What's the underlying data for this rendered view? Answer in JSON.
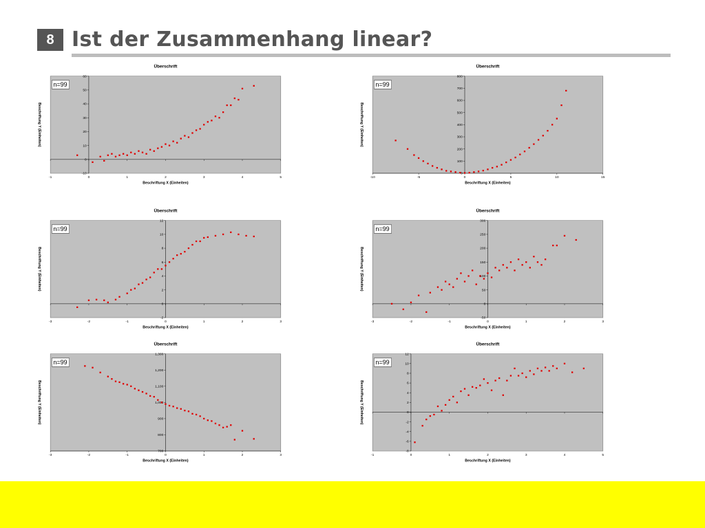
{
  "slide": {
    "number": "8",
    "title": "Ist der Zusammenhang linear?"
  },
  "colors": {
    "point": "#e00000",
    "plot_bg": "#c0c0c0",
    "footer": "#ffff00",
    "title": "#555555"
  },
  "chart_data": [
    {
      "type": "scatter",
      "title": "Überschrift",
      "xlabel": "Beschriftung X (Einheiten)",
      "ylabel": "Beschriftung Y (Einheiten)",
      "n_label": "n=99",
      "xlim": [
        -1,
        5
      ],
      "ylim": [
        -10,
        60
      ],
      "xticks": [
        -1,
        0,
        1,
        2,
        3,
        4,
        5
      ],
      "yticks": [
        -10,
        0,
        10,
        20,
        30,
        40,
        50,
        60
      ],
      "grid": false,
      "points": [
        [
          -0.3,
          3
        ],
        [
          0.1,
          -2
        ],
        [
          0.3,
          2
        ],
        [
          0.4,
          -1
        ],
        [
          0.5,
          3
        ],
        [
          0.6,
          4
        ],
        [
          0.7,
          2
        ],
        [
          0.8,
          3
        ],
        [
          0.9,
          4
        ],
        [
          1.0,
          3
        ],
        [
          1.1,
          5
        ],
        [
          1.2,
          4
        ],
        [
          1.3,
          6
        ],
        [
          1.4,
          5
        ],
        [
          1.5,
          4
        ],
        [
          1.6,
          7
        ],
        [
          1.7,
          6
        ],
        [
          1.8,
          8
        ],
        [
          1.9,
          9
        ],
        [
          2.0,
          11
        ],
        [
          2.1,
          10
        ],
        [
          2.2,
          13
        ],
        [
          2.3,
          12
        ],
        [
          2.4,
          15
        ],
        [
          2.5,
          17
        ],
        [
          2.6,
          16
        ],
        [
          2.7,
          19
        ],
        [
          2.8,
          21
        ],
        [
          2.9,
          22
        ],
        [
          3.0,
          25
        ],
        [
          3.1,
          27
        ],
        [
          3.2,
          28
        ],
        [
          3.3,
          31
        ],
        [
          3.4,
          30
        ],
        [
          3.5,
          34
        ],
        [
          3.6,
          39
        ],
        [
          3.7,
          39
        ],
        [
          3.8,
          44
        ],
        [
          3.9,
          43
        ],
        [
          4.0,
          51
        ],
        [
          4.3,
          53
        ]
      ]
    },
    {
      "type": "scatter",
      "title": "Überschrift",
      "xlabel": "Beschriftung X (Einheiten)",
      "ylabel": "Beschriftung Y (Einheiten)",
      "n_label": "n=99",
      "xlim": [
        -10,
        15
      ],
      "ylim": [
        0,
        800
      ],
      "xticks": [
        -10,
        -5,
        0,
        5,
        10,
        15
      ],
      "yticks": [
        0,
        100,
        200,
        300,
        400,
        500,
        600,
        700,
        800
      ],
      "grid": false,
      "points": [
        [
          -7.5,
          270
        ],
        [
          -6.2,
          200
        ],
        [
          -5.5,
          150
        ],
        [
          -5,
          125
        ],
        [
          -4.5,
          100
        ],
        [
          -4,
          80
        ],
        [
          -3.5,
          60
        ],
        [
          -3,
          45
        ],
        [
          -2.5,
          32
        ],
        [
          -2,
          20
        ],
        [
          -1.5,
          15
        ],
        [
          -1,
          10
        ],
        [
          -0.5,
          5
        ],
        [
          0,
          3
        ],
        [
          0.5,
          5
        ],
        [
          1,
          10
        ],
        [
          1.5,
          15
        ],
        [
          2,
          22
        ],
        [
          2.5,
          32
        ],
        [
          3,
          45
        ],
        [
          3.5,
          55
        ],
        [
          4,
          70
        ],
        [
          4.5,
          90
        ],
        [
          5,
          110
        ],
        [
          5.5,
          130
        ],
        [
          6,
          155
        ],
        [
          6.5,
          180
        ],
        [
          7,
          210
        ],
        [
          7.5,
          240
        ],
        [
          8,
          275
        ],
        [
          8.5,
          310
        ],
        [
          9,
          350
        ],
        [
          9.5,
          400
        ],
        [
          10,
          450
        ],
        [
          10.5,
          560
        ],
        [
          11,
          680
        ]
      ]
    },
    {
      "type": "scatter",
      "title": "Überschrift",
      "xlabel": "Beschriftung X (Einheiten)",
      "ylabel": "Beschriftung Y (Einheiten)",
      "n_label": "n=99",
      "xlim": [
        -3,
        3
      ],
      "ylim": [
        -2,
        12
      ],
      "xticks": [
        -3,
        -2,
        -1,
        0,
        1,
        2,
        3
      ],
      "yticks": [
        -2,
        0,
        2,
        4,
        6,
        8,
        10,
        12
      ],
      "grid": false,
      "points": [
        [
          -2.3,
          -0.5
        ],
        [
          -2.0,
          0.5
        ],
        [
          -1.8,
          0.6
        ],
        [
          -1.6,
          0.5
        ],
        [
          -1.5,
          0.2
        ],
        [
          -1.3,
          0.6
        ],
        [
          -1.2,
          1
        ],
        [
          -1.0,
          1.5
        ],
        [
          -0.9,
          2
        ],
        [
          -0.8,
          2.2
        ],
        [
          -0.7,
          2.8
        ],
        [
          -0.6,
          3
        ],
        [
          -0.5,
          3.5
        ],
        [
          -0.4,
          3.8
        ],
        [
          -0.3,
          4.5
        ],
        [
          -0.2,
          5
        ],
        [
          -0.1,
          5
        ],
        [
          0.0,
          5.5
        ],
        [
          0.1,
          6
        ],
        [
          0.2,
          6.5
        ],
        [
          0.3,
          7
        ],
        [
          0.4,
          7.2
        ],
        [
          0.5,
          7.5
        ],
        [
          0.6,
          8
        ],
        [
          0.7,
          8.5
        ],
        [
          0.8,
          9
        ],
        [
          0.9,
          9
        ],
        [
          1.0,
          9.5
        ],
        [
          1.1,
          9.6
        ],
        [
          1.3,
          9.8
        ],
        [
          1.5,
          10
        ],
        [
          1.7,
          10.3
        ],
        [
          1.9,
          10
        ],
        [
          2.1,
          9.8
        ],
        [
          2.3,
          9.7
        ]
      ]
    },
    {
      "type": "scatter",
      "title": "Überschrift",
      "xlabel": "Beschriftung X (Einheiten)",
      "ylabel": "Beschriftung Y (Einheiten)",
      "n_label": "n=99",
      "xlim": [
        -3,
        3
      ],
      "ylim": [
        -50,
        300
      ],
      "xticks": [
        -3,
        -2,
        -1,
        0,
        1,
        2,
        3
      ],
      "yticks": [
        -50,
        0,
        50,
        100,
        150,
        200,
        250,
        300
      ],
      "grid": false,
      "points": [
        [
          -2.5,
          0
        ],
        [
          -2.2,
          -20
        ],
        [
          -2.0,
          5
        ],
        [
          -1.8,
          30
        ],
        [
          -1.6,
          -30
        ],
        [
          -1.5,
          40
        ],
        [
          -1.3,
          60
        ],
        [
          -1.2,
          50
        ],
        [
          -1.1,
          80
        ],
        [
          -1.0,
          70
        ],
        [
          -0.9,
          60
        ],
        [
          -0.8,
          90
        ],
        [
          -0.7,
          110
        ],
        [
          -0.6,
          80
        ],
        [
          -0.5,
          100
        ],
        [
          -0.4,
          120
        ],
        [
          -0.3,
          70
        ],
        [
          -0.2,
          100
        ],
        [
          -0.1,
          90
        ],
        [
          0.0,
          110
        ],
        [
          0.1,
          95
        ],
        [
          0.2,
          130
        ],
        [
          0.3,
          120
        ],
        [
          0.4,
          140
        ],
        [
          0.5,
          130
        ],
        [
          0.6,
          150
        ],
        [
          0.7,
          120
        ],
        [
          0.8,
          160
        ],
        [
          0.9,
          140
        ],
        [
          1.0,
          150
        ],
        [
          1.1,
          130
        ],
        [
          1.2,
          170
        ],
        [
          1.3,
          150
        ],
        [
          1.4,
          140
        ],
        [
          1.5,
          160
        ],
        [
          1.7,
          210
        ],
        [
          1.8,
          210
        ],
        [
          2.0,
          245
        ],
        [
          2.3,
          230
        ]
      ]
    },
    {
      "type": "scatter",
      "title": "Überschrift",
      "xlabel": "Beschriftung X (Einheiten)",
      "ylabel": "Beschriftung Y (Einheiten)",
      "n_label": "n=99",
      "xlim": [
        -3,
        3
      ],
      "ylim": [
        700,
        1300
      ],
      "xticks": [
        -3,
        -2,
        -1,
        0,
        1,
        2,
        3
      ],
      "yticks": [
        700,
        800,
        900,
        1000,
        1100,
        1200,
        1300
      ],
      "ytick_labels": [
        "700",
        "800",
        "900",
        "1,000",
        "1,100",
        "1,200",
        "1,300"
      ],
      "grid": false,
      "points": [
        [
          -2.1,
          1225
        ],
        [
          -1.9,
          1215
        ],
        [
          -1.7,
          1185
        ],
        [
          -1.5,
          1160
        ],
        [
          -1.4,
          1145
        ],
        [
          -1.3,
          1130
        ],
        [
          -1.2,
          1125
        ],
        [
          -1.1,
          1115
        ],
        [
          -1.0,
          1110
        ],
        [
          -0.9,
          1100
        ],
        [
          -0.8,
          1085
        ],
        [
          -0.7,
          1075
        ],
        [
          -0.6,
          1065
        ],
        [
          -0.5,
          1055
        ],
        [
          -0.4,
          1040
        ],
        [
          -0.3,
          1035
        ],
        [
          -0.2,
          1015
        ],
        [
          -0.1,
          1000
        ],
        [
          0.0,
          990
        ],
        [
          0.1,
          980
        ],
        [
          0.2,
          975
        ],
        [
          0.3,
          965
        ],
        [
          0.4,
          960
        ],
        [
          0.5,
          950
        ],
        [
          0.6,
          945
        ],
        [
          0.7,
          930
        ],
        [
          0.8,
          925
        ],
        [
          0.9,
          915
        ],
        [
          1.0,
          900
        ],
        [
          1.1,
          890
        ],
        [
          1.2,
          885
        ],
        [
          1.3,
          870
        ],
        [
          1.4,
          860
        ],
        [
          1.5,
          845
        ],
        [
          1.6,
          850
        ],
        [
          1.7,
          860
        ],
        [
          1.8,
          770
        ],
        [
          2.0,
          825
        ],
        [
          2.3,
          775
        ]
      ]
    },
    {
      "type": "scatter",
      "title": "Überschrift",
      "xlabel": "Beschriftung X (Einheiten)",
      "ylabel": "Beschriftung Y (Einheiten)",
      "n_label": "n=99",
      "xlim": [
        -1,
        5
      ],
      "ylim": [
        -8,
        12
      ],
      "xticks": [
        -1,
        0,
        1,
        2,
        3,
        4,
        5
      ],
      "yticks": [
        -8,
        -6,
        -4,
        -2,
        0,
        2,
        4,
        6,
        8,
        10,
        12
      ],
      "grid": false,
      "points": [
        [
          0.1,
          -6.2
        ],
        [
          0.3,
          -2.8
        ],
        [
          0.4,
          -1.5
        ],
        [
          0.5,
          -0.8
        ],
        [
          0.6,
          -0.5
        ],
        [
          0.7,
          1.2
        ],
        [
          0.8,
          0.3
        ],
        [
          0.9,
          1.5
        ],
        [
          1.0,
          2.5
        ],
        [
          1.1,
          3.2
        ],
        [
          1.2,
          2
        ],
        [
          1.3,
          4.3
        ],
        [
          1.4,
          4.8
        ],
        [
          1.5,
          3.5
        ],
        [
          1.6,
          5.2
        ],
        [
          1.7,
          5
        ],
        [
          1.8,
          5.5
        ],
        [
          1.9,
          6.8
        ],
        [
          2.0,
          6
        ],
        [
          2.1,
          4.5
        ],
        [
          2.2,
          6.5
        ],
        [
          2.3,
          7
        ],
        [
          2.4,
          3.5
        ],
        [
          2.5,
          6.5
        ],
        [
          2.6,
          7.5
        ],
        [
          2.7,
          9
        ],
        [
          2.8,
          7.5
        ],
        [
          2.9,
          8
        ],
        [
          3.0,
          7.2
        ],
        [
          3.1,
          8.5
        ],
        [
          3.2,
          7.8
        ],
        [
          3.3,
          9
        ],
        [
          3.4,
          8.5
        ],
        [
          3.5,
          9.2
        ],
        [
          3.6,
          8.5
        ],
        [
          3.7,
          9.5
        ],
        [
          3.8,
          9
        ],
        [
          4.0,
          10
        ],
        [
          4.2,
          8.2
        ],
        [
          4.5,
          9
        ]
      ]
    }
  ]
}
